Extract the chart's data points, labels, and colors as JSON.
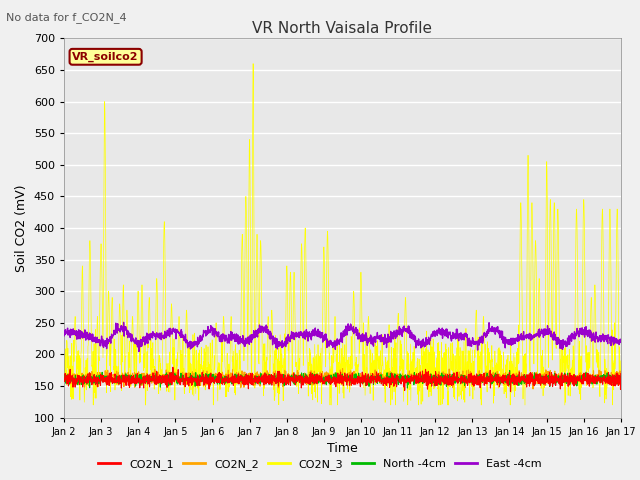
{
  "title": "VR North Vaisala Profile",
  "subtitle": "No data for f_CO2N_4",
  "xlabel": "Time",
  "ylabel": "Soil CO2 (mV)",
  "ylim": [
    100,
    700
  ],
  "yticks": [
    100,
    150,
    200,
    250,
    300,
    350,
    400,
    450,
    500,
    550,
    600,
    650,
    700
  ],
  "xtick_labels": [
    "Jan 2",
    "Jan 3",
    "Jan 4",
    "Jan 5",
    "Jan 6",
    "Jan 7",
    "Jan 8",
    "Jan 9",
    "Jan 10",
    "Jan 11",
    "Jan 12",
    "Jan 13",
    "Jan 14",
    "Jan 15",
    "Jan 16",
    "Jan 17"
  ],
  "legend_label": "VR_soilco2",
  "legend_box_color": "#FFFF99",
  "legend_box_edge": "#8B0000",
  "legend_text_color": "#8B0000",
  "bg_color": "#E8E8E8",
  "grid_color": "#FFFFFF",
  "series_colors": {
    "CO2N_1": "#FF0000",
    "CO2N_2": "#FFA500",
    "CO2N_3": "#FFFF00",
    "North_4cm": "#00BB00",
    "East_4cm": "#9900CC"
  },
  "n_points": 2000,
  "seed": 12345
}
